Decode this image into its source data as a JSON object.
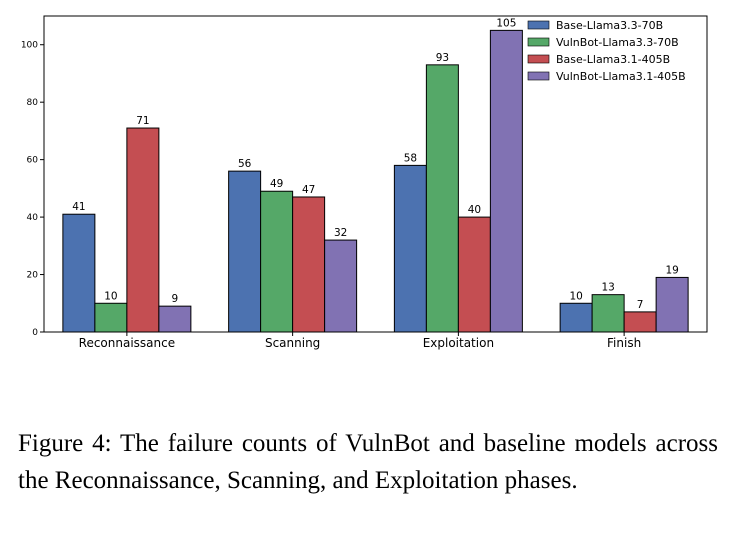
{
  "chart_data": {
    "type": "bar",
    "categories": [
      "Reconnaissance",
      "Scanning",
      "Exploitation",
      "Finish"
    ],
    "series": [
      {
        "name": "Base-Llama3.3-70B",
        "color": "#4c72b0",
        "values": [
          41,
          56,
          58,
          10
        ]
      },
      {
        "name": "VulnBot-Llama3.3-70B",
        "color": "#55a868",
        "values": [
          10,
          49,
          93,
          13
        ]
      },
      {
        "name": "Base-Llama3.1-405B",
        "color": "#c44e52",
        "values": [
          71,
          47,
          40,
          7
        ]
      },
      {
        "name": "VulnBot-Llama3.1-405B",
        "color": "#8172b3",
        "values": [
          9,
          32,
          105,
          19
        ]
      }
    ],
    "yticks": [
      "0",
      "20",
      "40",
      "60",
      "80",
      "100"
    ],
    "ylim": [
      0,
      110
    ],
    "grid": false,
    "legend_position": "top-right",
    "title": "",
    "xlabel": "",
    "ylabel": ""
  },
  "caption": "Figure 4: The failure counts of VulnBot and baseline models across the Reconnaissance, Scanning, and Exploitation phases."
}
